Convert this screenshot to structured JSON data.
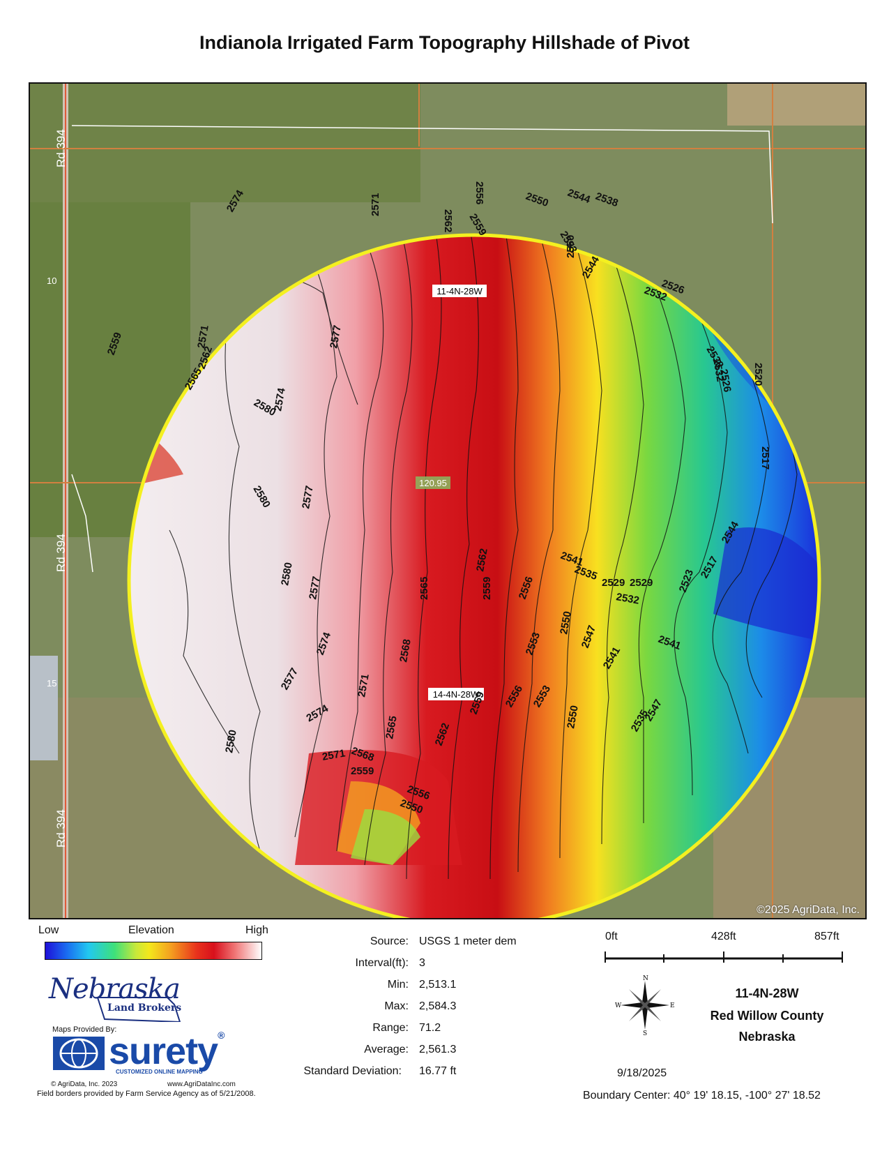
{
  "title": "Indianola Irrigated Farm Topography Hillshade of Pivot",
  "map": {
    "road_labels": [
      "Rd 394",
      "Rd 394",
      "Rd 394"
    ],
    "section_labels": [
      "10",
      "15"
    ],
    "plss_labels": [
      "11-4N-28W",
      "14-4N-28W"
    ],
    "acreage_label": "120.95",
    "copyright": "©2025 AgriData, Inc.",
    "contour_labels": [
      "2538",
      "2544",
      "2550",
      "2556",
      "2562",
      "2559",
      "2553",
      "2550",
      "2544",
      "2532",
      "2526",
      "2538",
      "2532",
      "2526",
      "2520",
      "2517",
      "2574",
      "2571",
      "2565",
      "2559",
      "2562",
      "2571",
      "2577",
      "2574",
      "2580",
      "2577",
      "2580",
      "2580",
      "2577",
      "2574",
      "2571",
      "2568",
      "2565",
      "2562",
      "2559",
      "2556",
      "2553",
      "2550",
      "2547",
      "2541",
      "2535",
      "2529",
      "2523",
      "2517",
      "2544",
      "2541",
      "2535",
      "2529",
      "2532",
      "2541",
      "2547",
      "2550",
      "2553",
      "2556",
      "2559",
      "2562",
      "2565",
      "2568",
      "2571",
      "2574",
      "2577",
      "2580",
      "2559",
      "2556",
      "2550"
    ]
  },
  "legend": {
    "low": "Low",
    "elevation": "Elevation",
    "high": "High",
    "gradient_colors": [
      "#1e10d8",
      "#22c8f0",
      "#3ee07a",
      "#f4e81c",
      "#f4a020",
      "#d8101c",
      "#f07878",
      "#ffffff"
    ]
  },
  "logos": {
    "nebraska": "Nebraska",
    "nebraska_sub": "Land Brokers",
    "maps_provided_by": "Maps Provided By:",
    "surety": "surety",
    "surety_reg": "®",
    "surety_tag": "CUSTOMIZED ONLINE MAPPING",
    "agridata_copyright": "© AgriData, Inc. 2023",
    "agridata_url": "www.AgriDataInc.com",
    "fsa_note": "Field borders provided by Farm Service Agency as of 5/21/2008."
  },
  "stats": {
    "source_label": "Source:",
    "source_value": "USGS 1 meter dem",
    "interval_label": "Interval(ft):",
    "interval_value": "3",
    "min_label": "Min:",
    "min_value": "2,513.1",
    "max_label": "Max:",
    "max_value": "2,584.3",
    "range_label": "Range:",
    "range_value": "71.2",
    "average_label": "Average:",
    "average_value": "2,561.3",
    "sd_label": "Standard Deviation:",
    "sd_value": "16.77 ft"
  },
  "scale": {
    "labels": [
      "0ft",
      "428ft",
      "857ft"
    ]
  },
  "compass": {
    "n": "N",
    "s": "S",
    "e": "E",
    "w": "W"
  },
  "date": "9/18/2025",
  "location": {
    "section": "11-4N-28W",
    "county": "Red Willow County",
    "state": "Nebraska"
  },
  "boundary_center": "Boundary Center: 40° 19' 18.15,  -100° 27' 18.52"
}
